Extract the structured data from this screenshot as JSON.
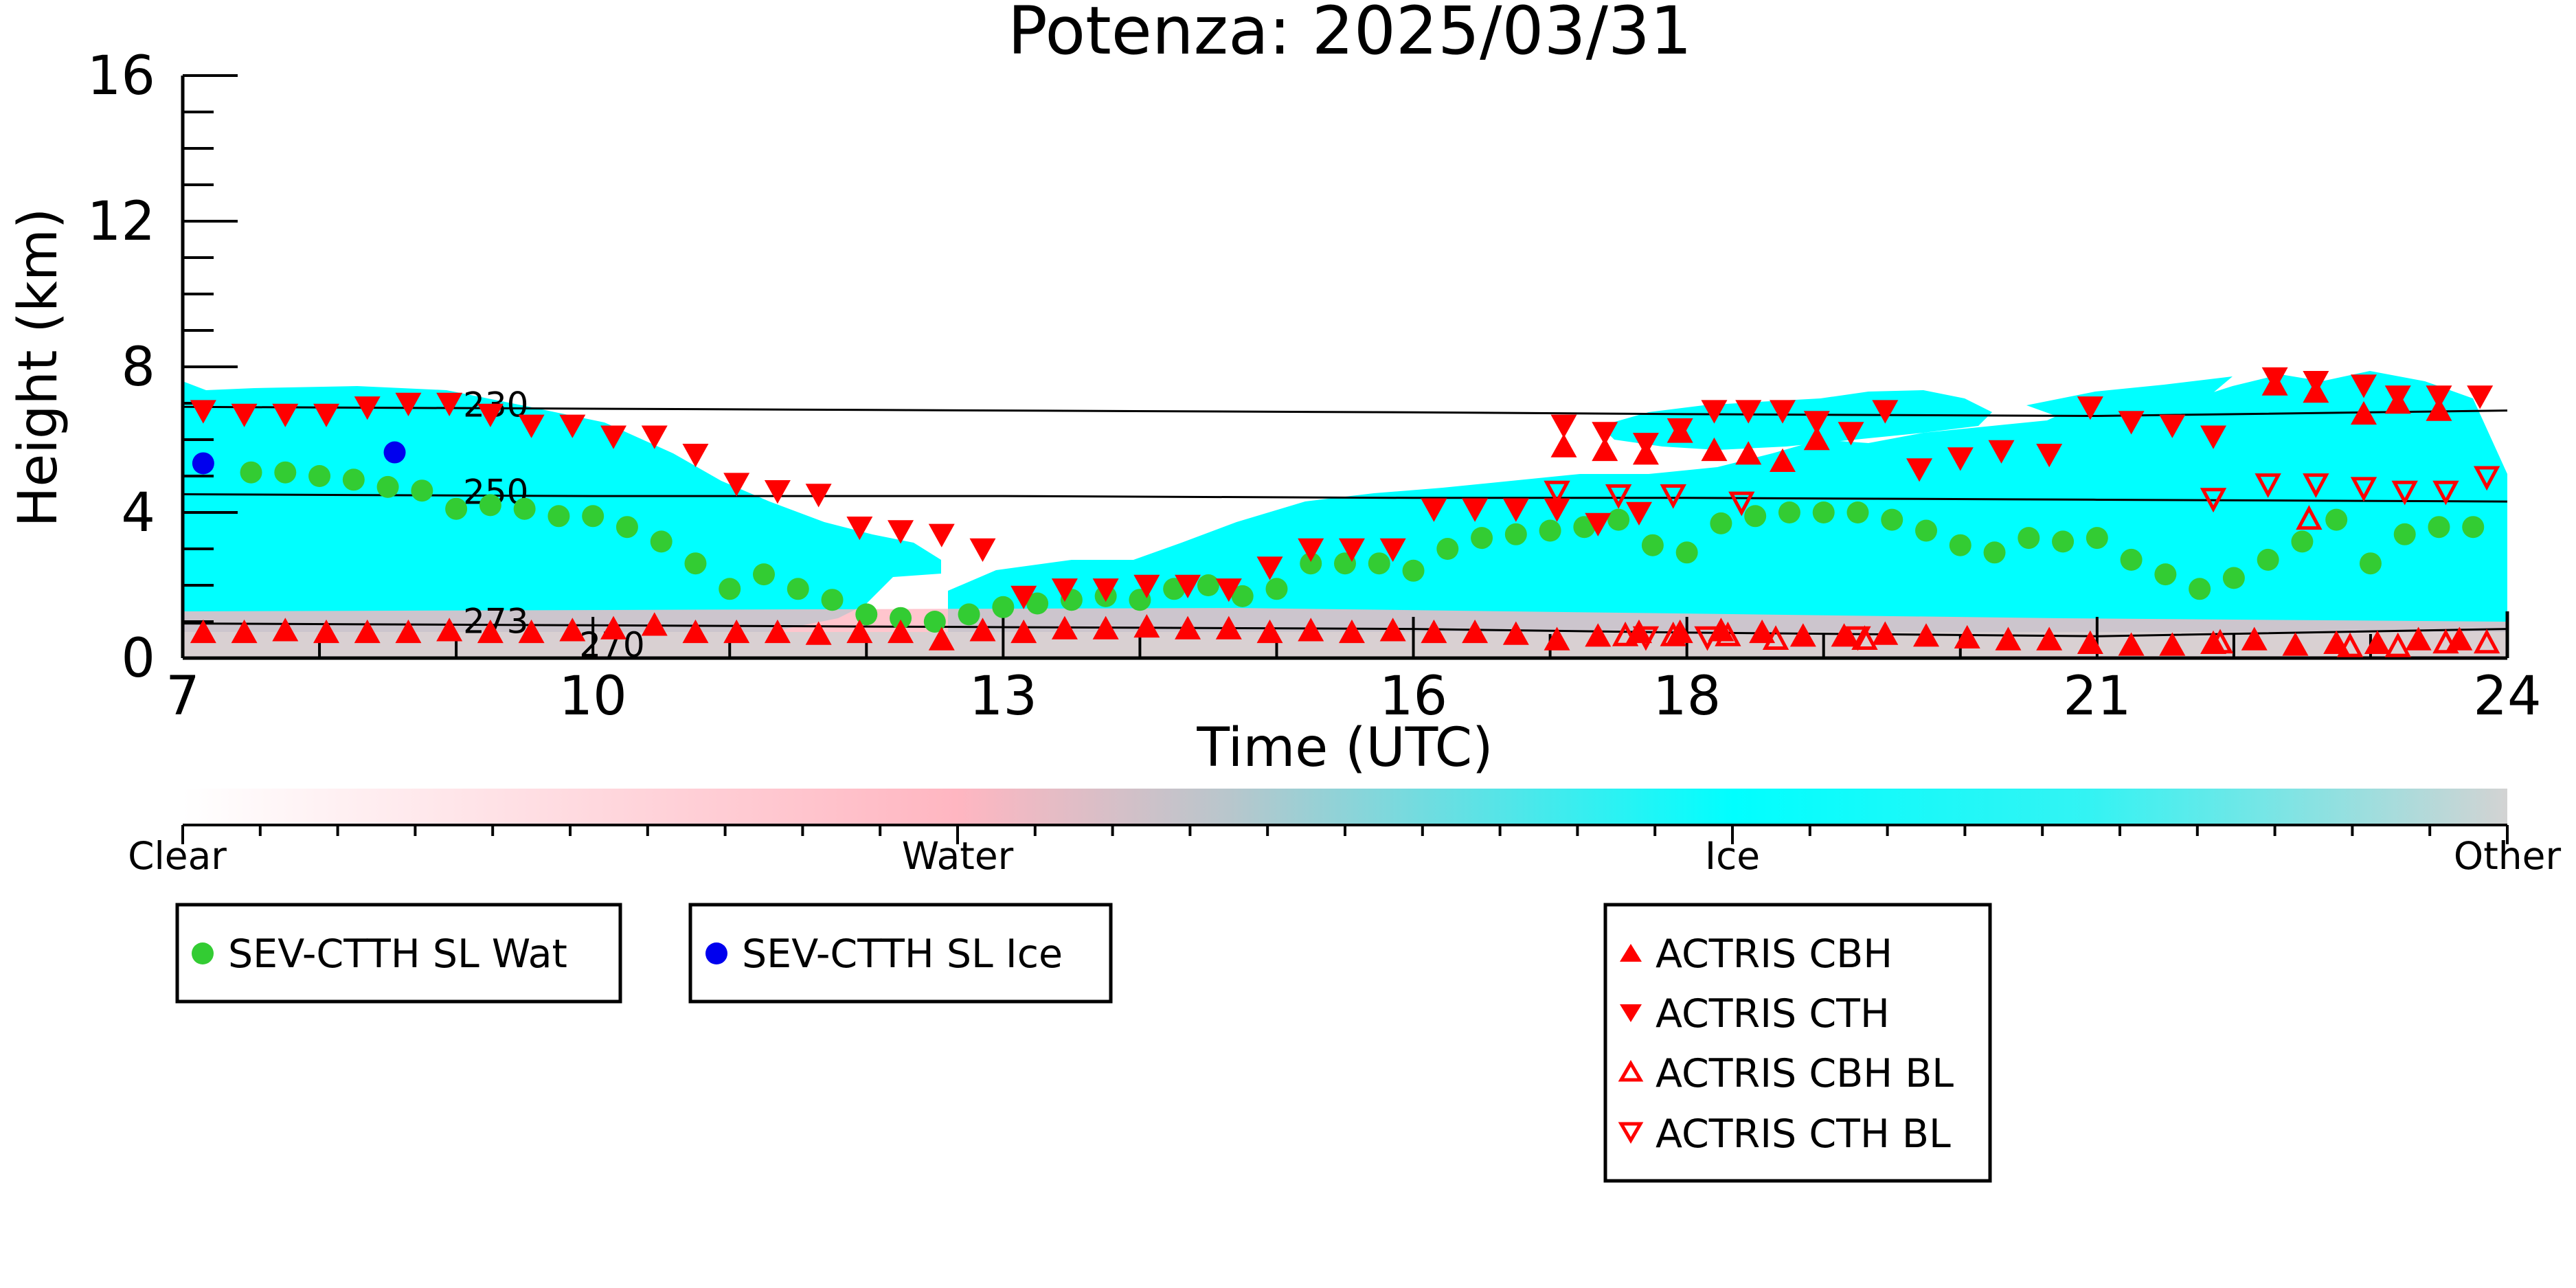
{
  "chart_data": {
    "type": "scatter",
    "title": "Potenza: 2025/03/31",
    "xlabel": "Time (UTC)",
    "ylabel": "Height (km)",
    "xlim": [
      7,
      24
    ],
    "ylim": [
      0,
      16
    ],
    "x_ticks": [
      7,
      10,
      13,
      16,
      18,
      21,
      24
    ],
    "y_ticks": [
      0,
      4,
      8,
      12,
      16
    ],
    "colorbar": {
      "labels": [
        "Clear",
        "Water",
        "Ice",
        "Other"
      ],
      "colors": [
        "#ffffff",
        "#ffb6c1",
        "#00ffff",
        "#d3d3d3"
      ]
    },
    "isotherms": [
      {
        "label": "230",
        "x": [
          7,
          10,
          13,
          16,
          18,
          21,
          24
        ],
        "y": [
          6.9,
          6.85,
          6.8,
          6.75,
          6.7,
          6.65,
          6.8
        ]
      },
      {
        "label": "250",
        "x": [
          7,
          10,
          13,
          16,
          18,
          21,
          24
        ],
        "y": [
          4.5,
          4.45,
          4.45,
          4.4,
          4.4,
          4.35,
          4.3
        ]
      },
      {
        "label": "273",
        "x": [
          7,
          10,
          13,
          16,
          18,
          21,
          24
        ],
        "y": [
          0.95,
          0.9,
          0.85,
          0.8,
          0.7,
          0.6,
          0.8
        ]
      },
      {
        "label": "270",
        "x": [
          9.8,
          10.5
        ],
        "y": [
          0.0,
          0.0
        ]
      }
    ],
    "series": [
      {
        "name": "SEV-CTTH SL Wat",
        "color": "#33cc33",
        "marker": "circle",
        "x": [
          7.5,
          7.75,
          8,
          8.25,
          8.5,
          8.75,
          9,
          9.25,
          9.5,
          9.75,
          10,
          10.25,
          10.5,
          10.75,
          11,
          11.25,
          11.5,
          11.75,
          12,
          12.25,
          12.5,
          12.75,
          13,
          13.25,
          13.5,
          13.75,
          14,
          14.25,
          14.5,
          14.75,
          15,
          15.25,
          15.5,
          15.75,
          16,
          16.25,
          16.5,
          16.75,
          17,
          17.25,
          17.5,
          17.75,
          18,
          18.25,
          18.5,
          18.75,
          19,
          19.25,
          19.5,
          19.75,
          20,
          20.25,
          20.5,
          20.75,
          21,
          21.25,
          21.5,
          21.75,
          22,
          22.25,
          22.5,
          22.75,
          23,
          23.25,
          23.5,
          23.75
        ],
        "y": [
          5.1,
          5.1,
          5.0,
          4.9,
          4.7,
          4.6,
          4.1,
          4.2,
          4.1,
          3.9,
          3.9,
          3.6,
          3.2,
          2.6,
          1.9,
          2.3,
          1.9,
          1.6,
          1.2,
          1.1,
          1.0,
          1.2,
          1.4,
          1.5,
          1.6,
          1.7,
          1.6,
          1.9,
          2.0,
          1.7,
          1.9,
          2.6,
          2.6,
          2.6,
          2.4,
          3.0,
          3.3,
          3.4,
          3.5,
          3.6,
          3.8,
          3.1,
          2.9,
          3.7,
          3.9,
          4.0,
          4.0,
          4.0,
          3.8,
          3.5,
          3.1,
          2.9,
          3.3,
          3.2,
          3.3,
          2.7,
          2.3,
          1.9,
          2.2,
          2.7,
          3.2,
          3.8,
          2.6,
          3.4,
          3.6,
          3.6
        ]
      },
      {
        "name": "SEV-CTTH SL Ice",
        "color": "#0000ee",
        "marker": "circle",
        "x": [
          7.15,
          8.55
        ],
        "y": [
          5.35,
          5.65
        ]
      },
      {
        "name": "ACTRIS CBH",
        "color": "#ff0000",
        "marker": "triangle-up",
        "x": [
          7.15,
          7.45,
          7.75,
          8.05,
          8.35,
          8.65,
          8.95,
          9.25,
          9.55,
          9.85,
          10.15,
          10.45,
          10.75,
          11.05,
          11.35,
          11.65,
          11.95,
          12.25,
          12.55,
          12.85,
          13.15,
          13.45,
          13.75,
          14.05,
          14.35,
          14.65,
          14.95,
          15.25,
          15.55,
          15.85,
          16.15,
          16.45,
          16.75,
          17.05,
          17.35,
          17.65,
          17.95,
          18.25,
          18.55,
          18.85,
          19.15,
          19.45,
          19.75,
          20.05,
          20.35,
          20.65,
          20.95,
          21.25,
          21.55,
          21.85,
          22.15,
          22.45,
          22.75,
          23.05,
          23.35,
          23.65,
          17.1,
          17.4,
          17.7,
          17.95,
          18.2,
          18.45,
          18.7,
          18.95,
          22.3,
          22.6,
          22.95,
          23.2,
          23.5
        ],
        "y": [
          0.7,
          0.7,
          0.75,
          0.7,
          0.7,
          0.7,
          0.75,
          0.7,
          0.7,
          0.75,
          0.8,
          0.9,
          0.7,
          0.7,
          0.7,
          0.65,
          0.7,
          0.7,
          0.5,
          0.75,
          0.7,
          0.8,
          0.8,
          0.85,
          0.8,
          0.8,
          0.7,
          0.75,
          0.7,
          0.75,
          0.7,
          0.7,
          0.65,
          0.5,
          0.6,
          0.7,
          0.7,
          0.75,
          0.7,
          0.6,
          0.6,
          0.65,
          0.6,
          0.55,
          0.5,
          0.5,
          0.4,
          0.35,
          0.35,
          0.4,
          0.5,
          0.35,
          0.4,
          0.4,
          0.5,
          0.5,
          5.8,
          5.7,
          5.6,
          6.2,
          5.7,
          5.6,
          5.4,
          6.0,
          7.5,
          7.3,
          6.7,
          7.0,
          6.8
        ]
      },
      {
        "name": "ACTRIS CTH",
        "color": "#ff0000",
        "marker": "triangle-down",
        "x": [
          7.15,
          7.45,
          7.75,
          8.05,
          8.35,
          8.65,
          8.95,
          9.25,
          9.55,
          9.85,
          10.15,
          10.45,
          10.75,
          11.05,
          11.35,
          11.65,
          11.95,
          12.25,
          12.55,
          12.85,
          13.15,
          13.45,
          13.75,
          14.05,
          14.35,
          14.65,
          14.95,
          15.25,
          15.55,
          15.85,
          16.15,
          16.45,
          16.75,
          17.05,
          17.35,
          17.65,
          17.1,
          17.4,
          17.7,
          17.95,
          18.2,
          18.45,
          18.7,
          18.95,
          19.2,
          19.45,
          19.7,
          20.0,
          20.3,
          20.65,
          20.95,
          21.25,
          21.55,
          21.85,
          22.3,
          22.6,
          22.95,
          23.2,
          23.5,
          23.8
        ],
        "y": [
          6.8,
          6.7,
          6.7,
          6.7,
          6.9,
          7.0,
          7.0,
          6.7,
          6.4,
          6.4,
          6.1,
          6.1,
          5.6,
          4.8,
          4.6,
          4.5,
          3.6,
          3.5,
          3.4,
          3.0,
          1.7,
          1.9,
          1.9,
          2.0,
          2.0,
          1.9,
          2.5,
          3.0,
          3.0,
          3.0,
          4.1,
          4.1,
          4.1,
          4.1,
          3.7,
          4.0,
          6.4,
          6.2,
          5.9,
          6.3,
          6.8,
          6.8,
          6.8,
          6.5,
          6.2,
          6.8,
          5.2,
          5.5,
          5.7,
          5.6,
          6.9,
          6.5,
          6.4,
          6.1,
          7.7,
          7.6,
          7.5,
          7.2,
          7.2,
          7.2
        ]
      },
      {
        "name": "ACTRIS CBH BL",
        "color": "#ff0000",
        "marker": "triangle-up-open",
        "x": [
          17.55,
          17.9,
          18.3,
          18.65,
          19.3,
          21.9,
          22.55,
          22.85,
          23.2,
          23.55,
          23.85
        ],
        "y": [
          0.6,
          0.6,
          0.6,
          0.5,
          0.5,
          0.4,
          3.8,
          0.3,
          0.3,
          0.4,
          0.4
        ]
      },
      {
        "name": "ACTRIS CTH BL",
        "color": "#ff0000",
        "marker": "triangle-down-open",
        "x": [
          17.05,
          17.5,
          17.9,
          18.4,
          21.85,
          22.25,
          22.6,
          22.95,
          23.25,
          23.55,
          23.85,
          17.7,
          18.15,
          19.25
        ],
        "y": [
          4.6,
          4.5,
          4.5,
          4.3,
          4.4,
          4.8,
          4.8,
          4.7,
          4.6,
          4.6,
          5.0,
          0.6,
          0.6,
          0.6
        ]
      }
    ]
  }
}
